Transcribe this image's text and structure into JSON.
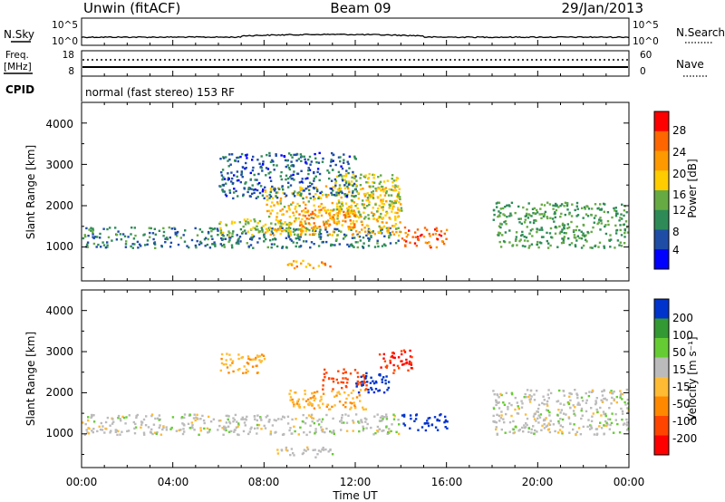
{
  "header": {
    "station": "Unwin (fitACF)",
    "beam": "Beam 09",
    "date": "29/Jan/2013"
  },
  "noise_panel": {
    "left_label": "N.Sky",
    "right_label": "N.Search",
    "left_ticks": [
      "10^5",
      "10^0"
    ],
    "right_ticks": [
      "10^5",
      "10^0"
    ]
  },
  "freq_panel": {
    "left_label_1": "Freq.",
    "left_label_2": "[MHz]",
    "right_label": "Nave",
    "left_ticks": [
      "18",
      "8"
    ],
    "right_ticks": [
      "60",
      "0"
    ]
  },
  "cpid": {
    "label": "CPID",
    "text": "normal (fast stereo) 153 RF"
  },
  "power_panel": {
    "ylabel": "Slant Range [km]",
    "yticks": [
      "4000",
      "3000",
      "2000",
      "1000"
    ],
    "colorbar_label": "Power [dB]",
    "colorbar_ticks": [
      "28",
      "24",
      "20",
      "16",
      "12",
      "8",
      "4"
    ]
  },
  "velocity_panel": {
    "ylabel": "Slant Range [km]",
    "yticks": [
      "4000",
      "3000",
      "2000",
      "1000"
    ],
    "colorbar_label": "Velocity [m s⁻¹]",
    "colorbar_ticks": [
      "200",
      "100",
      "50",
      "15",
      "-15",
      "-50",
      "-100",
      "-200"
    ]
  },
  "xaxis": {
    "label": "Time UT",
    "ticks": [
      "00:00",
      "04:00",
      "08:00",
      "12:00",
      "16:00",
      "20:00",
      "00:00"
    ]
  },
  "colors": {
    "power_scale": [
      "#0000ff",
      "#1f4da6",
      "#2e8b57",
      "#66aa44",
      "#ffcc00",
      "#ff9900",
      "#ff6600",
      "#ff0000"
    ],
    "velocity_scale": [
      "#ff0000",
      "#ff4400",
      "#ff8800",
      "#ffbb33",
      "#bbbbbb",
      "#66cc33",
      "#339933",
      "#0033cc"
    ]
  },
  "chart_data": [
    {
      "type": "heatmap",
      "title": "Power",
      "xlabel": "Time UT",
      "ylabel": "Slant Range [km]",
      "xlim": [
        0,
        24
      ],
      "ylim": [
        180,
        4500
      ],
      "colorbar": {
        "label": "Power [dB]",
        "range": [
          0,
          32
        ]
      },
      "regions": [
        {
          "t": [
            0,
            14
          ],
          "range": [
            1000,
            1500
          ],
          "value": 9
        },
        {
          "t": [
            6,
            10
          ],
          "range": [
            1300,
            1700
          ],
          "value": 16
        },
        {
          "t": [
            8,
            14
          ],
          "range": [
            1300,
            2500
          ],
          "value": 19
        },
        {
          "t": [
            9.5,
            12
          ],
          "range": [
            1500,
            2000
          ],
          "value": 24
        },
        {
          "t": [
            11,
            14
          ],
          "range": [
            1700,
            2800
          ],
          "value": 16
        },
        {
          "t": [
            6,
            12
          ],
          "range": [
            2200,
            3300
          ],
          "value": 7
        },
        {
          "t": [
            9,
            11
          ],
          "range": [
            500,
            700
          ],
          "value": 22
        },
        {
          "t": [
            14,
            16
          ],
          "range": [
            1000,
            1500
          ],
          "value": 26
        },
        {
          "t": [
            18,
            24
          ],
          "range": [
            1000,
            2100
          ],
          "value": 12
        }
      ]
    },
    {
      "type": "heatmap",
      "title": "Velocity",
      "xlabel": "Time UT",
      "ylabel": "Slant Range [km]",
      "xlim": [
        0,
        24
      ],
      "ylim": [
        180,
        4500
      ],
      "colorbar": {
        "label": "Velocity [m s⁻¹]",
        "range": [
          -250,
          250
        ]
      },
      "regions": [
        {
          "t": [
            0,
            14
          ],
          "range": [
            1000,
            1500
          ],
          "value": 0
        },
        {
          "t": [
            6,
            8
          ],
          "range": [
            2500,
            3000
          ],
          "value": -40
        },
        {
          "t": [
            9,
            12.5
          ],
          "range": [
            1600,
            2100
          ],
          "value": -45
        },
        {
          "t": [
            10.5,
            12.5
          ],
          "range": [
            2100,
            2600
          ],
          "value": -180
        },
        {
          "t": [
            12,
            13.5
          ],
          "range": [
            2000,
            2500
          ],
          "value": 220
        },
        {
          "t": [
            13,
            14.5
          ],
          "range": [
            2500,
            3100
          ],
          "value": -200
        },
        {
          "t": [
            14,
            16
          ],
          "range": [
            1100,
            1500
          ],
          "value": 120
        },
        {
          "t": [
            8.5,
            11
          ],
          "range": [
            450,
            700
          ],
          "value": 0
        },
        {
          "t": [
            18,
            24
          ],
          "range": [
            1000,
            2100
          ],
          "value": 0
        }
      ]
    }
  ]
}
